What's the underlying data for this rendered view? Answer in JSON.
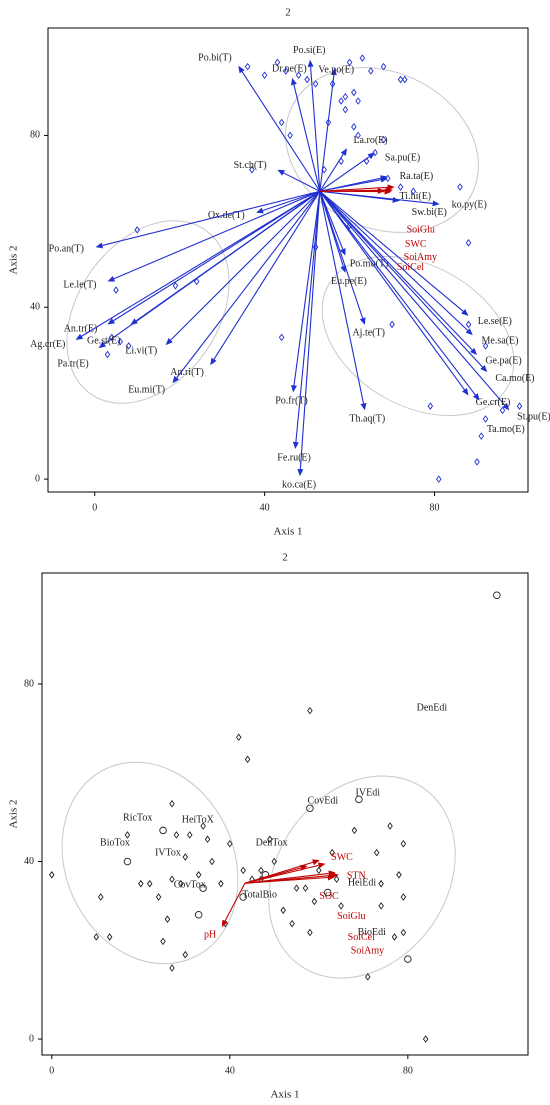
{
  "chart_data": [
    {
      "type": "biplot",
      "title": "2",
      "xlabel": "Axis 1",
      "ylabel": "Axis 2",
      "xlim": [
        -11,
        102
      ],
      "ylim": [
        -3,
        105
      ],
      "xticks": [
        0,
        40,
        80
      ],
      "yticks": [
        0,
        40,
        80
      ],
      "arrow_origin": {
        "x": 53,
        "y": 67
      },
      "vectors": [
        {
          "color": "#1f2fd0",
          "labels": [
            "Po.bi(T)",
            "Po.si(E)",
            "Dr.ne(E)",
            "Ve.po(E)",
            "La.ro(E)",
            "Sa.pu(E)",
            "St.ch(T)",
            "Ra.ta(E)",
            "Ti.hi(E)",
            "Po.mu(T)",
            "Sw.bi(E)",
            "ko.py(E)",
            "Ox.de(T)",
            "Po.an(T)",
            "Le.le(T)",
            "An.tr(E)",
            "Ag.cr(E)",
            "Pa.tr(E)",
            "Ge.st(E)",
            "Li.vi(T)",
            "Eu.mi(T)",
            "An.ri(T)",
            "Po.fr(T)",
            "Fe.ru(E)",
            "ko.ca(E)",
            "Th.aq(T)",
            "Aj.te(T)",
            "Eu.pe(E)",
            "Le.se(E)",
            "Me.sa(E)",
            "Ge.pa(E)",
            "Ca.mo(E)",
            "St.pu(E)",
            "Ta.mo(E)",
            "Ge.cr(E)"
          ],
          "x": [
            33.8,
            50.7,
            46.5,
            56.5,
            59.4,
            66,
            43,
            69,
            69,
            59,
            71.8,
            81.2,
            38,
            0.2,
            3,
            3,
            -4.5,
            0.9,
            8.4,
            16.7,
            18.3,
            27.2,
            46.7,
            47.2,
            48.3,
            63.6,
            63.6,
            59,
            88,
            89,
            90,
            92.4,
            97.6,
            90.6,
            88
          ],
          "y": [
            96.2,
            97.6,
            93.4,
            95.7,
            77,
            76,
            72,
            70,
            70.4,
            52,
            64.8,
            64,
            62,
            54,
            46,
            36,
            32.4,
            30.5,
            35.9,
            31.2,
            22.3,
            26.5,
            20.2,
            7,
            0.7,
            16,
            35.9,
            48,
            38,
            33.5,
            28.9,
            24.9,
            16,
            18.3,
            19.5
          ]
        },
        {
          "color": "#c00000",
          "labels": [
            "SoiGlu",
            "SWC",
            "SoiAmy",
            "SoiCel"
          ],
          "x": [
            70.6,
            70.2,
            69.9,
            68.3
          ],
          "y": [
            68,
            67.3,
            66.9,
            67.1
          ]
        }
      ],
      "points": [
        {
          "marker": "diamond",
          "color": "#1f2fd0",
          "x": [
            36,
            40,
            43,
            45,
            48,
            50,
            52,
            56,
            60,
            63,
            65,
            68,
            72,
            73,
            58,
            59,
            61,
            62,
            59,
            44,
            46,
            55,
            61,
            62,
            66,
            68,
            64,
            58,
            54,
            37,
            69,
            72,
            75,
            86,
            60,
            52,
            88,
            10,
            5,
            19,
            24,
            4,
            6,
            8,
            3,
            44,
            70,
            88,
            92,
            79,
            92,
            96,
            100,
            91,
            90,
            81
          ],
          "y": [
            96,
            94,
            97,
            95,
            94,
            93,
            92,
            92,
            97,
            98,
            95,
            96,
            93,
            93,
            88,
            89,
            90,
            88,
            86,
            83,
            80,
            83,
            82,
            80,
            76,
            79,
            74,
            74,
            72,
            72,
            70,
            68,
            67,
            68,
            59,
            54,
            55,
            58,
            44,
            45,
            46,
            33,
            32,
            31,
            29,
            33,
            36,
            36,
            31,
            17,
            14,
            16,
            17,
            10,
            4,
            0
          ]
        }
      ]
    },
    {
      "type": "biplot",
      "title": "2",
      "xlabel": "Axis 1",
      "ylabel": "Axis 2",
      "xlim": [
        -2.2,
        107
      ],
      "ylim": [
        -3.6,
        105
      ],
      "xticks": [
        0,
        40,
        80
      ],
      "yticks": [
        0,
        40,
        80
      ],
      "arrow_origin": {
        "x": 43.4,
        "y": 35.1
      },
      "vectors": [
        {
          "color": "#c00000",
          "labels": [
            "pH",
            "STN",
            "SWC",
            "SOC",
            "SoiGlu",
            "SoiCel",
            "SoiAmy"
          ],
          "x": [
            38.2,
            63.6,
            60.2,
            57.5,
            61.5,
            63.8,
            64.5
          ],
          "y": [
            25.2,
            36.5,
            40.3,
            39,
            39.5,
            37.5,
            37
          ]
        }
      ],
      "variables": {
        "labels": [
          "RicTox",
          "HeiToX",
          "BioTox",
          "IVTox",
          "CovTox",
          "DenTox",
          "TotalBio",
          "CovEdi",
          "IVEdi",
          "DenEdi",
          "HeiEdi",
          "BioEdi"
        ],
        "x": [
          19.3,
          32.8,
          14.2,
          26.1,
          31,
          49.4,
          46.7,
          60.9,
          71,
          85.4,
          69.7,
          71.9
        ],
        "y": [
          49.8,
          49.3,
          44.1,
          41.9,
          34.7,
          44.1,
          32.4,
          53.6,
          55.4,
          74.5,
          35.1,
          23.9
        ]
      },
      "points": [
        {
          "marker": "diamond",
          "color": "#222222",
          "x": [
            0,
            11,
            13,
            10,
            17,
            20,
            22,
            24,
            26,
            27,
            27,
            28,
            29,
            30,
            31,
            33,
            34,
            35,
            36,
            38,
            39,
            27,
            30,
            25,
            42,
            44,
            40,
            43,
            45,
            47,
            47,
            49,
            50,
            52,
            54,
            55,
            57,
            58,
            59,
            58,
            60,
            63,
            64,
            65,
            68,
            71,
            73,
            74,
            74,
            76,
            78,
            79,
            79,
            77,
            79,
            84
          ],
          "y": [
            37,
            32,
            23,
            23,
            46,
            35,
            35,
            32,
            27,
            36,
            53,
            46,
            35,
            41,
            46,
            37,
            48,
            45,
            40,
            35,
            26,
            16,
            19,
            22,
            68,
            63,
            44,
            38,
            36,
            38,
            36,
            45,
            40,
            29,
            26,
            34,
            34,
            24,
            31,
            74,
            38,
            42,
            36,
            30,
            47,
            14,
            42,
            35,
            30,
            48,
            37,
            44,
            32,
            23,
            24,
            0
          ]
        },
        {
          "marker": "circle",
          "color": "#222222",
          "x": [
            100,
            17,
            25,
            33,
            34,
            43,
            48,
            58,
            69,
            62,
            80
          ],
          "y": [
            100,
            40,
            47,
            28,
            34,
            32,
            37,
            52,
            54,
            33,
            18
          ]
        }
      ]
    }
  ]
}
